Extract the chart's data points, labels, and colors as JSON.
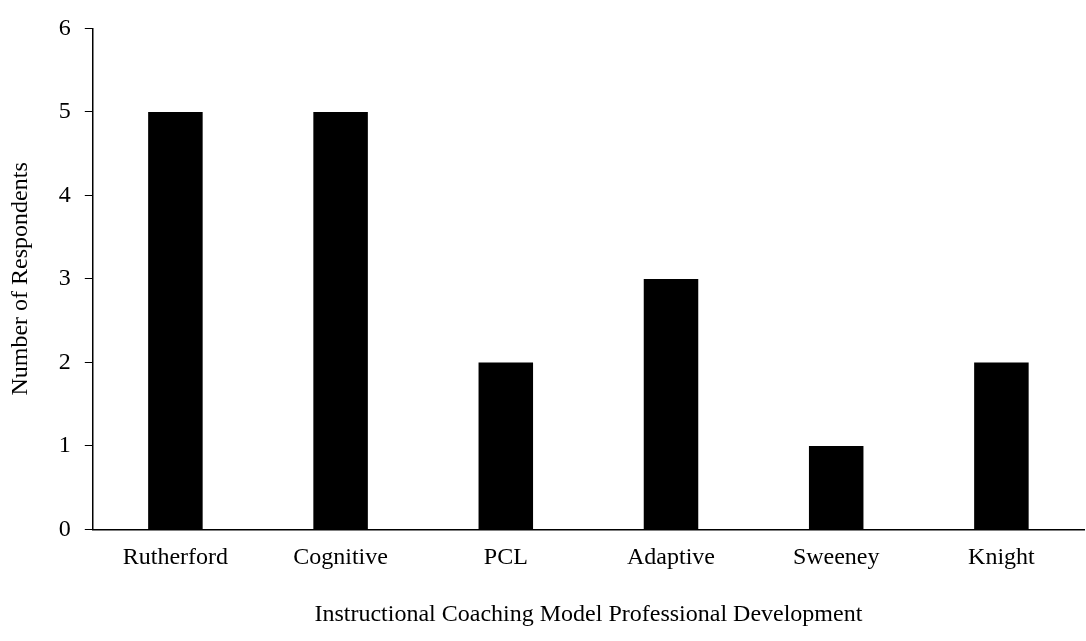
{
  "chart_data": {
    "type": "bar",
    "xlabel": "Instructional Coaching Model Professional Development",
    "ylabel": "Number of Respondents",
    "categories": [
      "Rutherford",
      "Cognitive",
      "PCL",
      "Adaptive",
      "Sweeney",
      "Knight"
    ],
    "values": [
      5,
      5,
      2,
      3,
      1,
      2
    ],
    "color": "#000000",
    "ylim": [
      0,
      6
    ],
    "yticks": [
      0,
      1,
      2,
      3,
      4,
      5,
      6
    ],
    "grid": false,
    "legend": false
  }
}
